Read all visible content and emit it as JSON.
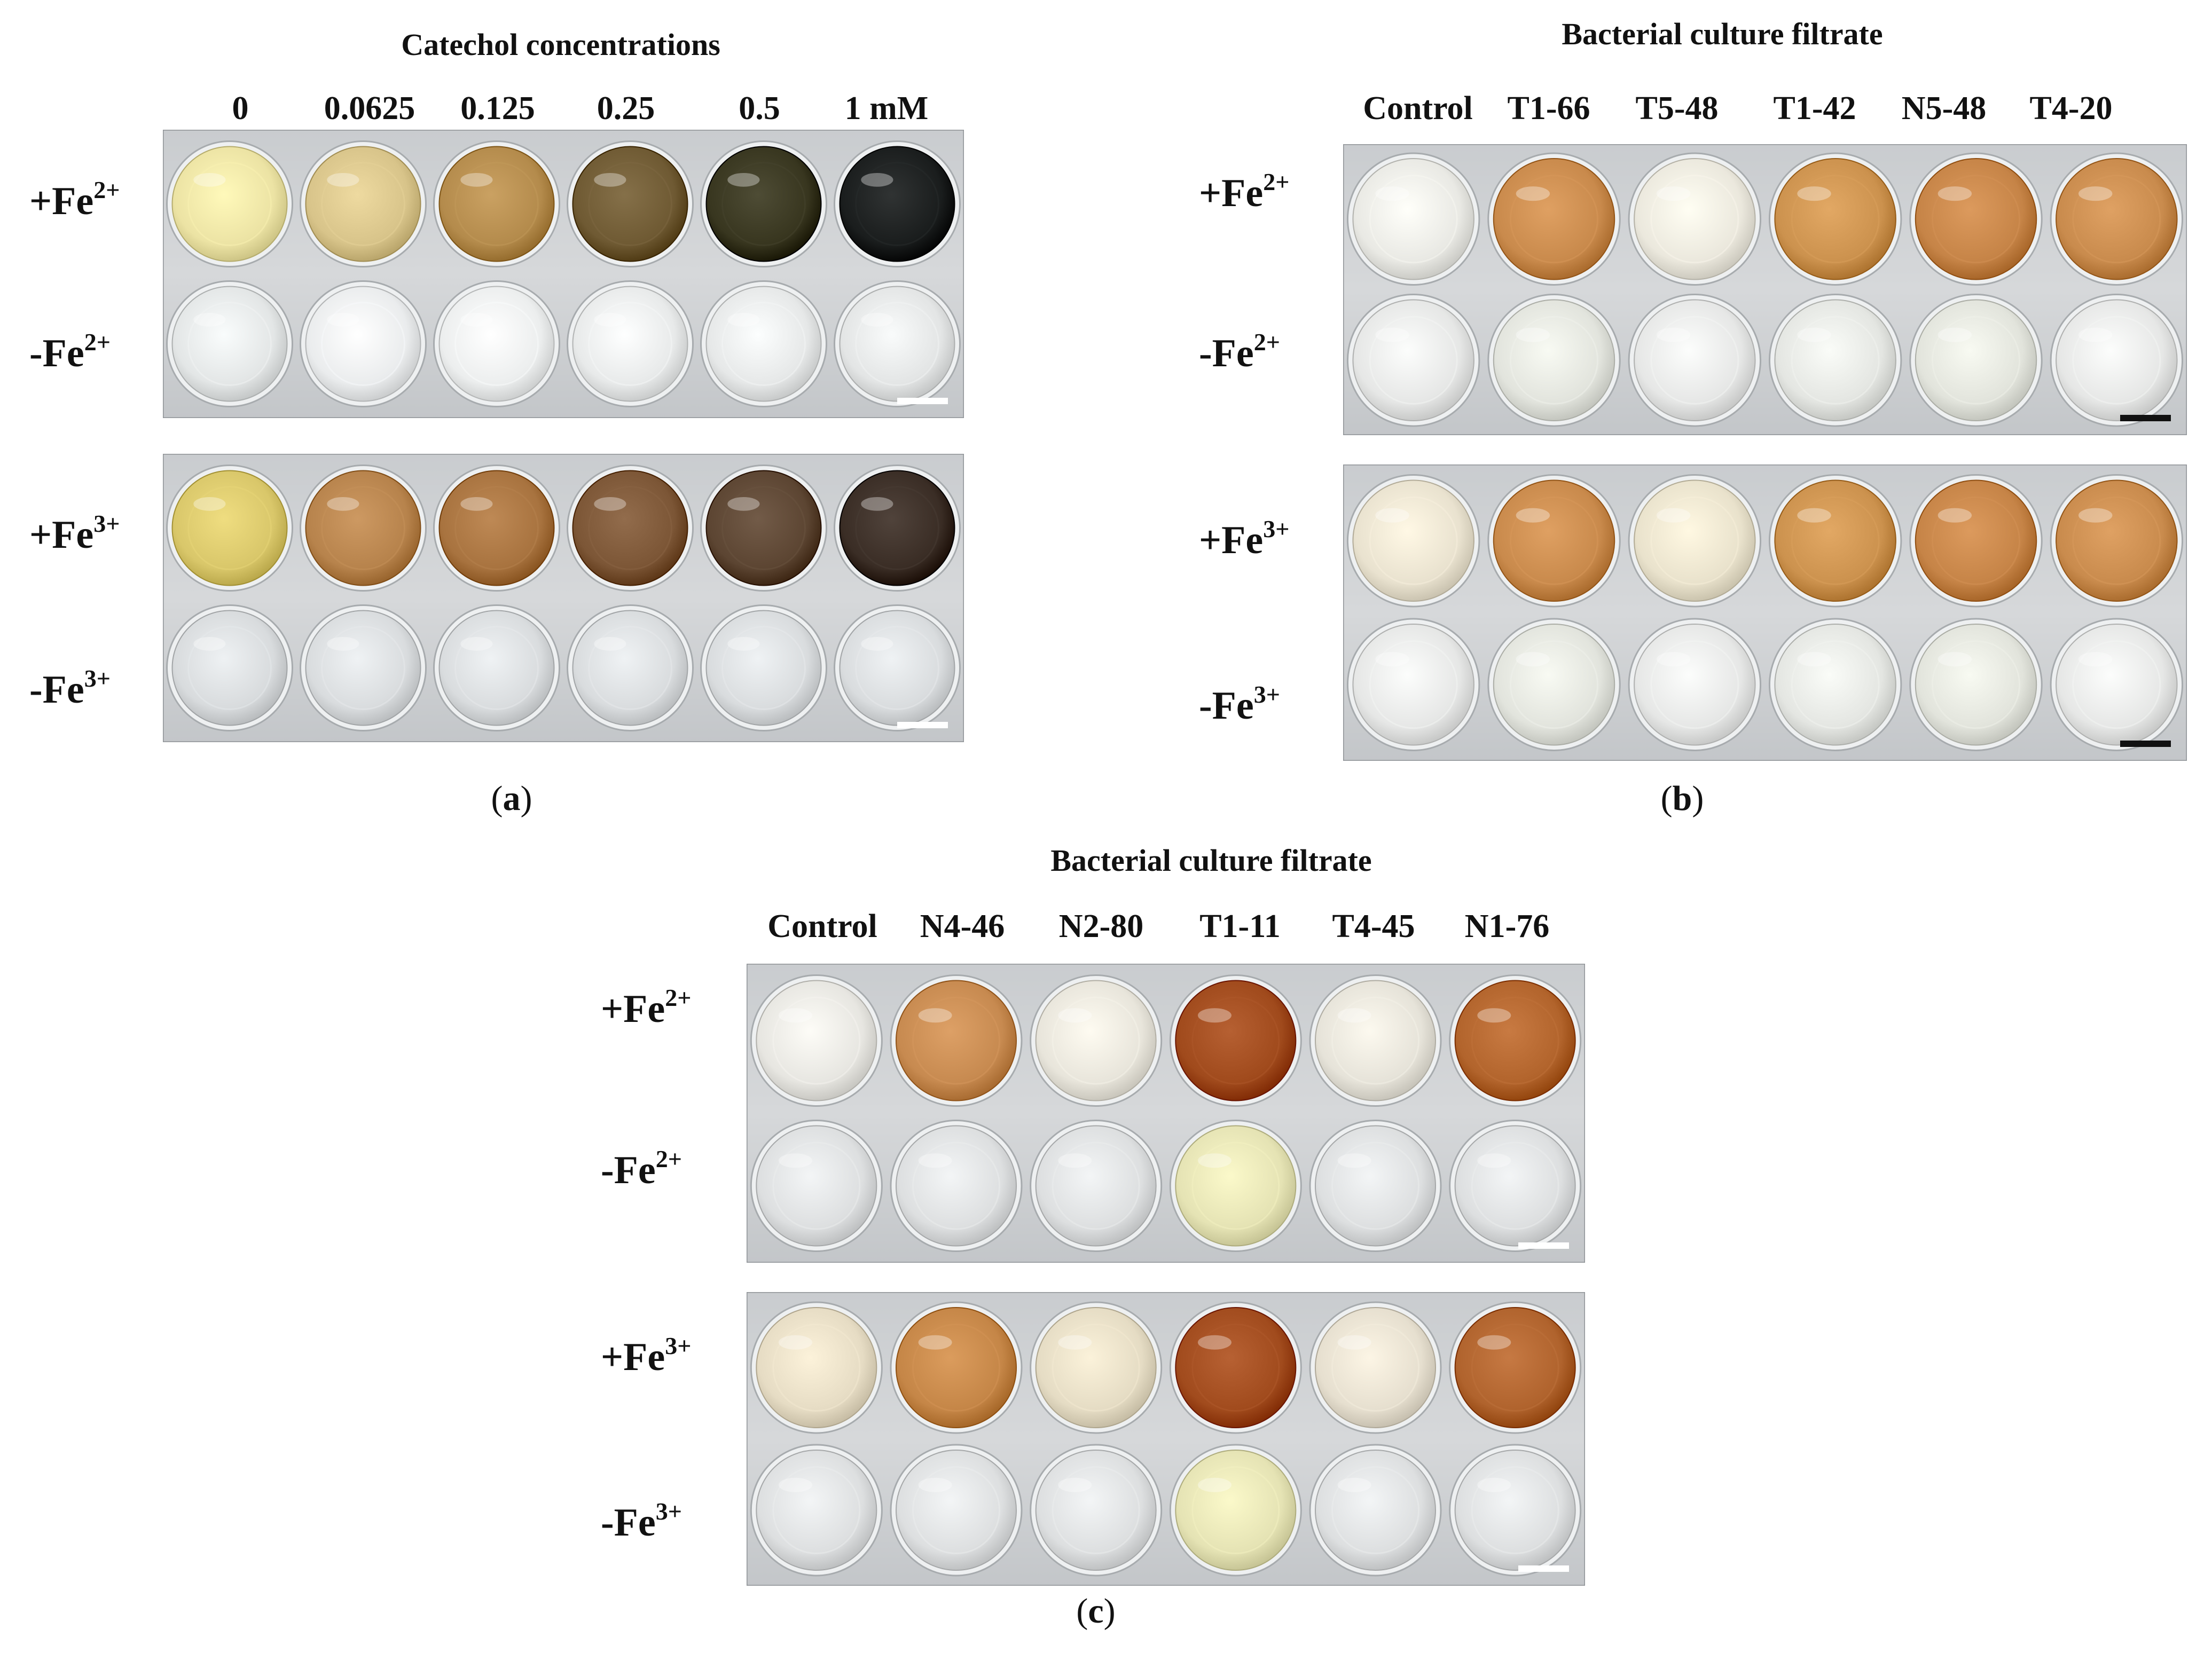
{
  "panels": {
    "a": {
      "title": "Catechol concentrations",
      "columns": [
        "0",
        "0.0625",
        "0.125",
        "0.25",
        "0.5",
        "1 mM"
      ],
      "rows": {
        "fe2_plus": {
          "sign": "+Fe",
          "charge": "2+"
        },
        "fe2_minus": {
          "sign": "-Fe",
          "charge": "2+"
        },
        "fe3_plus": {
          "sign": "+Fe",
          "charge": "3+"
        },
        "fe3_minus": {
          "sign": "-Fe",
          "charge": "3+"
        }
      },
      "letter_open": "(",
      "letter": "a",
      "letter_close": ")",
      "scale_bar_color": "#ffffff",
      "plates": [
        {
          "top_colors": [
            "#ece3a4",
            "#d8c48a",
            "#b48b4c",
            "#6f5a33",
            "#38361f",
            "#1a1d1d"
          ],
          "bottom_colors": [
            "#e3e6e6",
            "#eaeced",
            "#eceeee",
            "#e8eaea",
            "#e6e8e8",
            "#e3e5e5"
          ]
        },
        {
          "top_colors": [
            "#d9c76a",
            "#b7834c",
            "#a8733f",
            "#7c5636",
            "#5c4532",
            "#3a2d25"
          ],
          "bottom_colors": [
            "#d8dbdd",
            "#d9dcde",
            "#d9dcde",
            "#d9dcde",
            "#d9dcde",
            "#d9dcde"
          ]
        }
      ]
    },
    "b": {
      "title": "Bacterial culture filtrate",
      "columns": [
        "Control",
        "T1-66",
        "T5-48",
        "T1-42",
        "N5-48",
        "T4-20"
      ],
      "rows": {
        "fe2_plus": {
          "sign": "+Fe",
          "charge": "2+"
        },
        "fe2_minus": {
          "sign": "-Fe",
          "charge": "2+"
        },
        "fe3_plus": {
          "sign": "+Fe",
          "charge": "3+"
        },
        "fe3_minus": {
          "sign": "-Fe",
          "charge": "3+"
        }
      },
      "letter_open": "(",
      "letter": "b",
      "letter_close": ")",
      "scale_bar_color": "#111111",
      "plates": [
        {
          "top_colors": [
            "#e9e9e4",
            "#c98a4c",
            "#ebe8dd",
            "#cc924e",
            "#c68447",
            "#c98b4d"
          ],
          "bottom_colors": [
            "#e6e7e6",
            "#e2e4dd",
            "#e6e7e6",
            "#e4e6e2",
            "#e2e4dc",
            "#e6e7e6"
          ]
        },
        {
          "top_colors": [
            "#e9e2cf",
            "#c98a4c",
            "#e9e2cc",
            "#cc924e",
            "#c68447",
            "#c98b4d"
          ],
          "bottom_colors": [
            "#e6e7e6",
            "#e2e4dd",
            "#e6e7e6",
            "#e4e6e2",
            "#e2e4dc",
            "#e6e7e6"
          ]
        }
      ]
    },
    "c": {
      "title": "Bacterial culture filtrate",
      "columns": [
        "Control",
        "N4-46",
        "N2-80",
        "T1-11",
        "T4-45",
        "N1-76"
      ],
      "rows": {
        "fe2_plus": {
          "sign": "+Fe",
          "charge": "2+"
        },
        "fe2_minus": {
          "sign": "-Fe",
          "charge": "2+"
        },
        "fe3_plus": {
          "sign": "+Fe",
          "charge": "3+"
        },
        "fe3_minus": {
          "sign": "-Fe",
          "charge": "3+"
        }
      },
      "letter_open": "(",
      "letter": "c",
      "letter_close": ")",
      "scale_bar_color": "#ffffff",
      "plates": [
        {
          "top_colors": [
            "#e7e6e1",
            "#c78a50",
            "#e8e5db",
            "#a04a1c",
            "#e6e3d9",
            "#b2642c"
          ],
          "bottom_colors": [
            "#dddfe0",
            "#dddfe0",
            "#dddfe0",
            "#e5e3b4",
            "#dddfe0",
            "#dddfe0"
          ]
        },
        {
          "top_colors": [
            "#e6dcc4",
            "#c58647",
            "#e5dcc4",
            "#a14b1d",
            "#e6dfcf",
            "#b0632d"
          ],
          "bottom_colors": [
            "#dddfe0",
            "#dddfe0",
            "#dddfe0",
            "#e5e3b4",
            "#dddfe0",
            "#dddfe0"
          ]
        }
      ]
    }
  }
}
